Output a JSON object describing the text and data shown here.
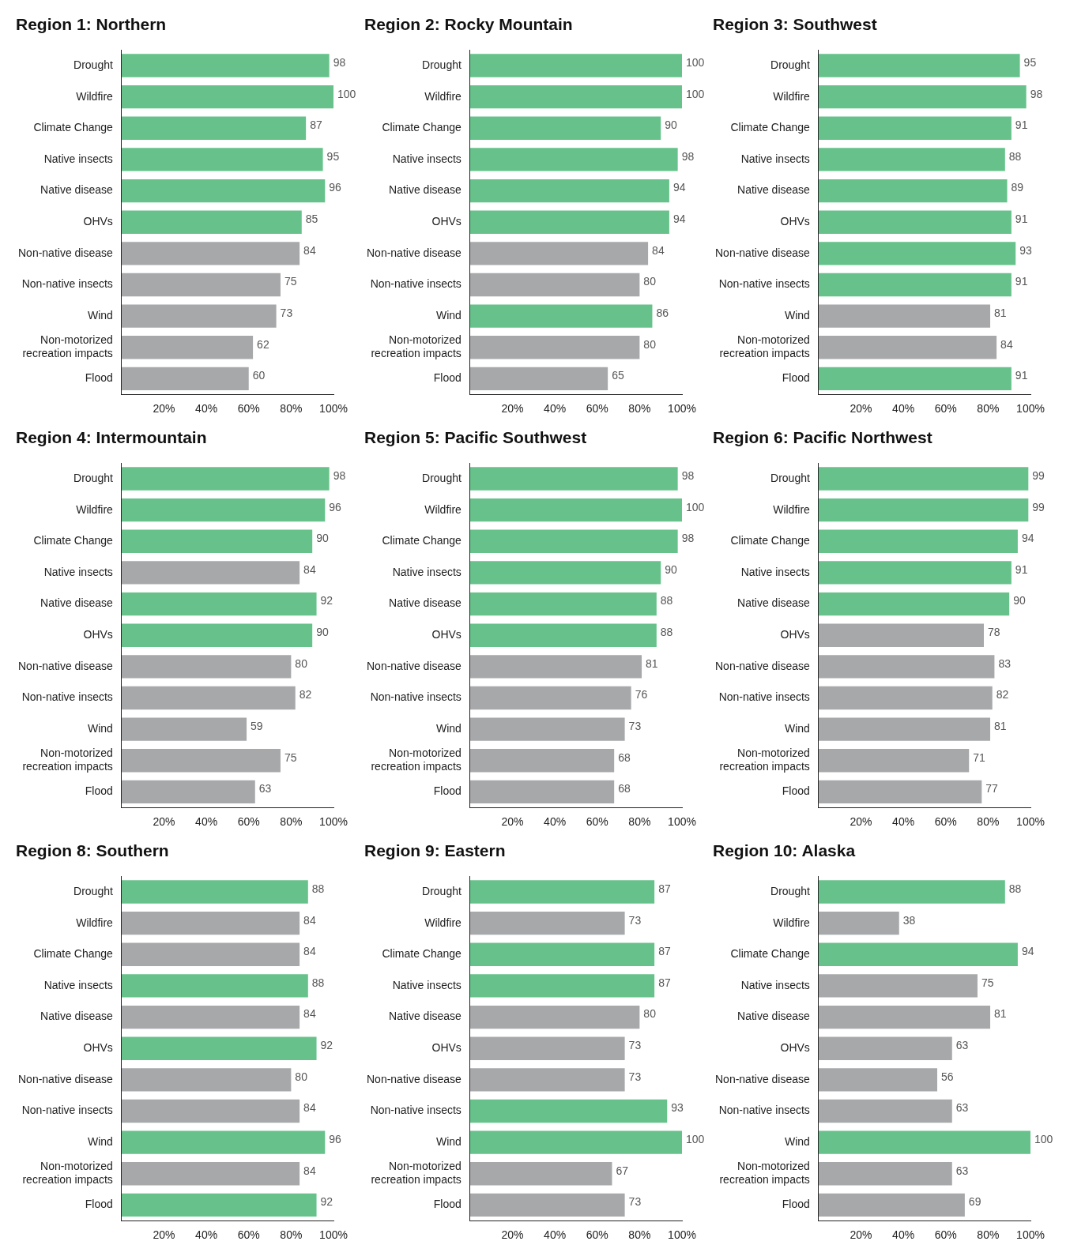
{
  "chart_data": [
    {
      "type": "bar",
      "orientation": "horizontal",
      "title": "Region 1: Northern",
      "categories": [
        "Drought",
        "Wildfire",
        "Climate Change",
        "Native insects",
        "Native disease",
        "OHVs",
        "Non-native disease",
        "Non-native insects",
        "Wind",
        "Non-motorized recreation impacts",
        "Flood"
      ],
      "values": [
        98,
        100,
        87,
        95,
        96,
        85,
        84,
        75,
        73,
        62,
        60
      ],
      "colors": [
        "#66c28a",
        "#66c28a",
        "#66c28a",
        "#66c28a",
        "#66c28a",
        "#66c28a",
        "#a7a8aa",
        "#a7a8aa",
        "#a7a8aa",
        "#a7a8aa",
        "#a7a8aa"
      ],
      "xlim": [
        0,
        100
      ],
      "xticks": [
        {
          "value": 20,
          "label": "20%"
        },
        {
          "value": 40,
          "label": "40%"
        },
        {
          "value": 60,
          "label": "60%"
        },
        {
          "value": 80,
          "label": "80%"
        },
        {
          "value": 100,
          "label": "100%"
        }
      ],
      "data_labels": true
    },
    {
      "type": "bar",
      "orientation": "horizontal",
      "title": "Region 2: Rocky Mountain",
      "categories": [
        "Drought",
        "Wildfire",
        "Climate Change",
        "Native insects",
        "Native disease",
        "OHVs",
        "Non-native disease",
        "Non-native insects",
        "Wind",
        "Non-motorized recreation impacts",
        "Flood"
      ],
      "values": [
        100,
        100,
        90,
        98,
        94,
        94,
        84,
        80,
        86,
        80,
        65
      ],
      "colors": [
        "#66c28a",
        "#66c28a",
        "#66c28a",
        "#66c28a",
        "#66c28a",
        "#66c28a",
        "#a7a8aa",
        "#a7a8aa",
        "#66c28a",
        "#a7a8aa",
        "#a7a8aa"
      ],
      "xlim": [
        0,
        100
      ],
      "xticks": [
        {
          "value": 20,
          "label": "20%"
        },
        {
          "value": 40,
          "label": "40%"
        },
        {
          "value": 60,
          "label": "60%"
        },
        {
          "value": 80,
          "label": "80%"
        },
        {
          "value": 100,
          "label": "100%"
        }
      ],
      "data_labels": true
    },
    {
      "type": "bar",
      "orientation": "horizontal",
      "title": "Region 3: Southwest",
      "categories": [
        "Drought",
        "Wildfire",
        "Climate Change",
        "Native insects",
        "Native disease",
        "OHVs",
        "Non-native disease",
        "Non-native insects",
        "Wind",
        "Non-motorized recreation impacts",
        "Flood"
      ],
      "values": [
        95,
        98,
        91,
        88,
        89,
        91,
        93,
        91,
        81,
        84,
        91
      ],
      "colors": [
        "#66c28a",
        "#66c28a",
        "#66c28a",
        "#66c28a",
        "#66c28a",
        "#66c28a",
        "#66c28a",
        "#66c28a",
        "#a7a8aa",
        "#a7a8aa",
        "#66c28a"
      ],
      "xlim": [
        0,
        100
      ],
      "xticks": [
        {
          "value": 20,
          "label": "20%"
        },
        {
          "value": 40,
          "label": "40%"
        },
        {
          "value": 60,
          "label": "60%"
        },
        {
          "value": 80,
          "label": "80%"
        },
        {
          "value": 100,
          "label": "100%"
        }
      ],
      "data_labels": true
    },
    {
      "type": "bar",
      "orientation": "horizontal",
      "title": "Region 4: Intermountain",
      "categories": [
        "Drought",
        "Wildfire",
        "Climate Change",
        "Native insects",
        "Native disease",
        "OHVs",
        "Non-native disease",
        "Non-native insects",
        "Wind",
        "Non-motorized recreation impacts",
        "Flood"
      ],
      "values": [
        98,
        96,
        90,
        84,
        92,
        90,
        80,
        82,
        59,
        75,
        63
      ],
      "colors": [
        "#66c28a",
        "#66c28a",
        "#66c28a",
        "#a7a8aa",
        "#66c28a",
        "#66c28a",
        "#a7a8aa",
        "#a7a8aa",
        "#a7a8aa",
        "#a7a8aa",
        "#a7a8aa"
      ],
      "xlim": [
        0,
        100
      ],
      "xticks": [
        {
          "value": 20,
          "label": "20%"
        },
        {
          "value": 40,
          "label": "40%"
        },
        {
          "value": 60,
          "label": "60%"
        },
        {
          "value": 80,
          "label": "80%"
        },
        {
          "value": 100,
          "label": "100%"
        }
      ],
      "data_labels": true
    },
    {
      "type": "bar",
      "orientation": "horizontal",
      "title": "Region 5: Pacific Southwest",
      "categories": [
        "Drought",
        "Wildfire",
        "Climate Change",
        "Native insects",
        "Native disease",
        "OHVs",
        "Non-native disease",
        "Non-native insects",
        "Wind",
        "Non-motorized recreation impacts",
        "Flood"
      ],
      "values": [
        98,
        100,
        98,
        90,
        88,
        88,
        81,
        76,
        73,
        68,
        68
      ],
      "colors": [
        "#66c28a",
        "#66c28a",
        "#66c28a",
        "#66c28a",
        "#66c28a",
        "#66c28a",
        "#a7a8aa",
        "#a7a8aa",
        "#a7a8aa",
        "#a7a8aa",
        "#a7a8aa"
      ],
      "xlim": [
        0,
        100
      ],
      "xticks": [
        {
          "value": 20,
          "label": "20%"
        },
        {
          "value": 40,
          "label": "40%"
        },
        {
          "value": 60,
          "label": "60%"
        },
        {
          "value": 80,
          "label": "80%"
        },
        {
          "value": 100,
          "label": "100%"
        }
      ],
      "data_labels": true
    },
    {
      "type": "bar",
      "orientation": "horizontal",
      "title": "Region 6: Pacific Northwest",
      "categories": [
        "Drought",
        "Wildfire",
        "Climate Change",
        "Native insects",
        "Native disease",
        "OHVs",
        "Non-native disease",
        "Non-native insects",
        "Wind",
        "Non-motorized recreation impacts",
        "Flood"
      ],
      "values": [
        99,
        99,
        94,
        91,
        90,
        78,
        83,
        82,
        81,
        71,
        77
      ],
      "colors": [
        "#66c28a",
        "#66c28a",
        "#66c28a",
        "#66c28a",
        "#66c28a",
        "#a7a8aa",
        "#a7a8aa",
        "#a7a8aa",
        "#a7a8aa",
        "#a7a8aa",
        "#a7a8aa"
      ],
      "xlim": [
        0,
        100
      ],
      "xticks": [
        {
          "value": 20,
          "label": "20%"
        },
        {
          "value": 40,
          "label": "40%"
        },
        {
          "value": 60,
          "label": "60%"
        },
        {
          "value": 80,
          "label": "80%"
        },
        {
          "value": 100,
          "label": "100%"
        }
      ],
      "data_labels": true
    },
    {
      "type": "bar",
      "orientation": "horizontal",
      "title": "Region 8: Southern",
      "categories": [
        "Drought",
        "Wildfire",
        "Climate Change",
        "Native insects",
        "Native disease",
        "OHVs",
        "Non-native disease",
        "Non-native insects",
        "Wind",
        "Non-motorized recreation impacts",
        "Flood"
      ],
      "values": [
        88,
        84,
        84,
        88,
        84,
        92,
        80,
        84,
        96,
        84,
        92
      ],
      "colors": [
        "#66c28a",
        "#a7a8aa",
        "#a7a8aa",
        "#66c28a",
        "#a7a8aa",
        "#66c28a",
        "#a7a8aa",
        "#a7a8aa",
        "#66c28a",
        "#a7a8aa",
        "#66c28a"
      ],
      "xlim": [
        0,
        100
      ],
      "xticks": [
        {
          "value": 20,
          "label": "20%"
        },
        {
          "value": 40,
          "label": "40%"
        },
        {
          "value": 60,
          "label": "60%"
        },
        {
          "value": 80,
          "label": "80%"
        },
        {
          "value": 100,
          "label": "100%"
        }
      ],
      "data_labels": true
    },
    {
      "type": "bar",
      "orientation": "horizontal",
      "title": "Region 9: Eastern",
      "categories": [
        "Drought",
        "Wildfire",
        "Climate Change",
        "Native insects",
        "Native disease",
        "OHVs",
        "Non-native disease",
        "Non-native insects",
        "Wind",
        "Non-motorized recreation impacts",
        "Flood"
      ],
      "values": [
        87,
        73,
        87,
        87,
        80,
        73,
        73,
        93,
        100,
        67,
        73
      ],
      "colors": [
        "#66c28a",
        "#a7a8aa",
        "#66c28a",
        "#66c28a",
        "#a7a8aa",
        "#a7a8aa",
        "#a7a8aa",
        "#66c28a",
        "#66c28a",
        "#a7a8aa",
        "#a7a8aa"
      ],
      "xlim": [
        0,
        100
      ],
      "xticks": [
        {
          "value": 20,
          "label": "20%"
        },
        {
          "value": 40,
          "label": "40%"
        },
        {
          "value": 60,
          "label": "60%"
        },
        {
          "value": 80,
          "label": "80%"
        },
        {
          "value": 100,
          "label": "100%"
        }
      ],
      "data_labels": true
    },
    {
      "type": "bar",
      "orientation": "horizontal",
      "title": "Region 10: Alaska",
      "categories": [
        "Drought",
        "Wildfire",
        "Climate Change",
        "Native insects",
        "Native disease",
        "OHVs",
        "Non-native disease",
        "Non-native insects",
        "Wind",
        "Non-motorized recreation impacts",
        "Flood"
      ],
      "values": [
        88,
        38,
        94,
        75,
        81,
        63,
        56,
        63,
        100,
        63,
        69
      ],
      "colors": [
        "#66c28a",
        "#a7a8aa",
        "#66c28a",
        "#a7a8aa",
        "#a7a8aa",
        "#a7a8aa",
        "#a7a8aa",
        "#a7a8aa",
        "#66c28a",
        "#a7a8aa",
        "#a7a8aa"
      ],
      "xlim": [
        0,
        100
      ],
      "xticks": [
        {
          "value": 20,
          "label": "20%"
        },
        {
          "value": 40,
          "label": "40%"
        },
        {
          "value": 60,
          "label": "60%"
        },
        {
          "value": 80,
          "label": "80%"
        },
        {
          "value": 100,
          "label": "100%"
        }
      ],
      "data_labels": true
    }
  ]
}
